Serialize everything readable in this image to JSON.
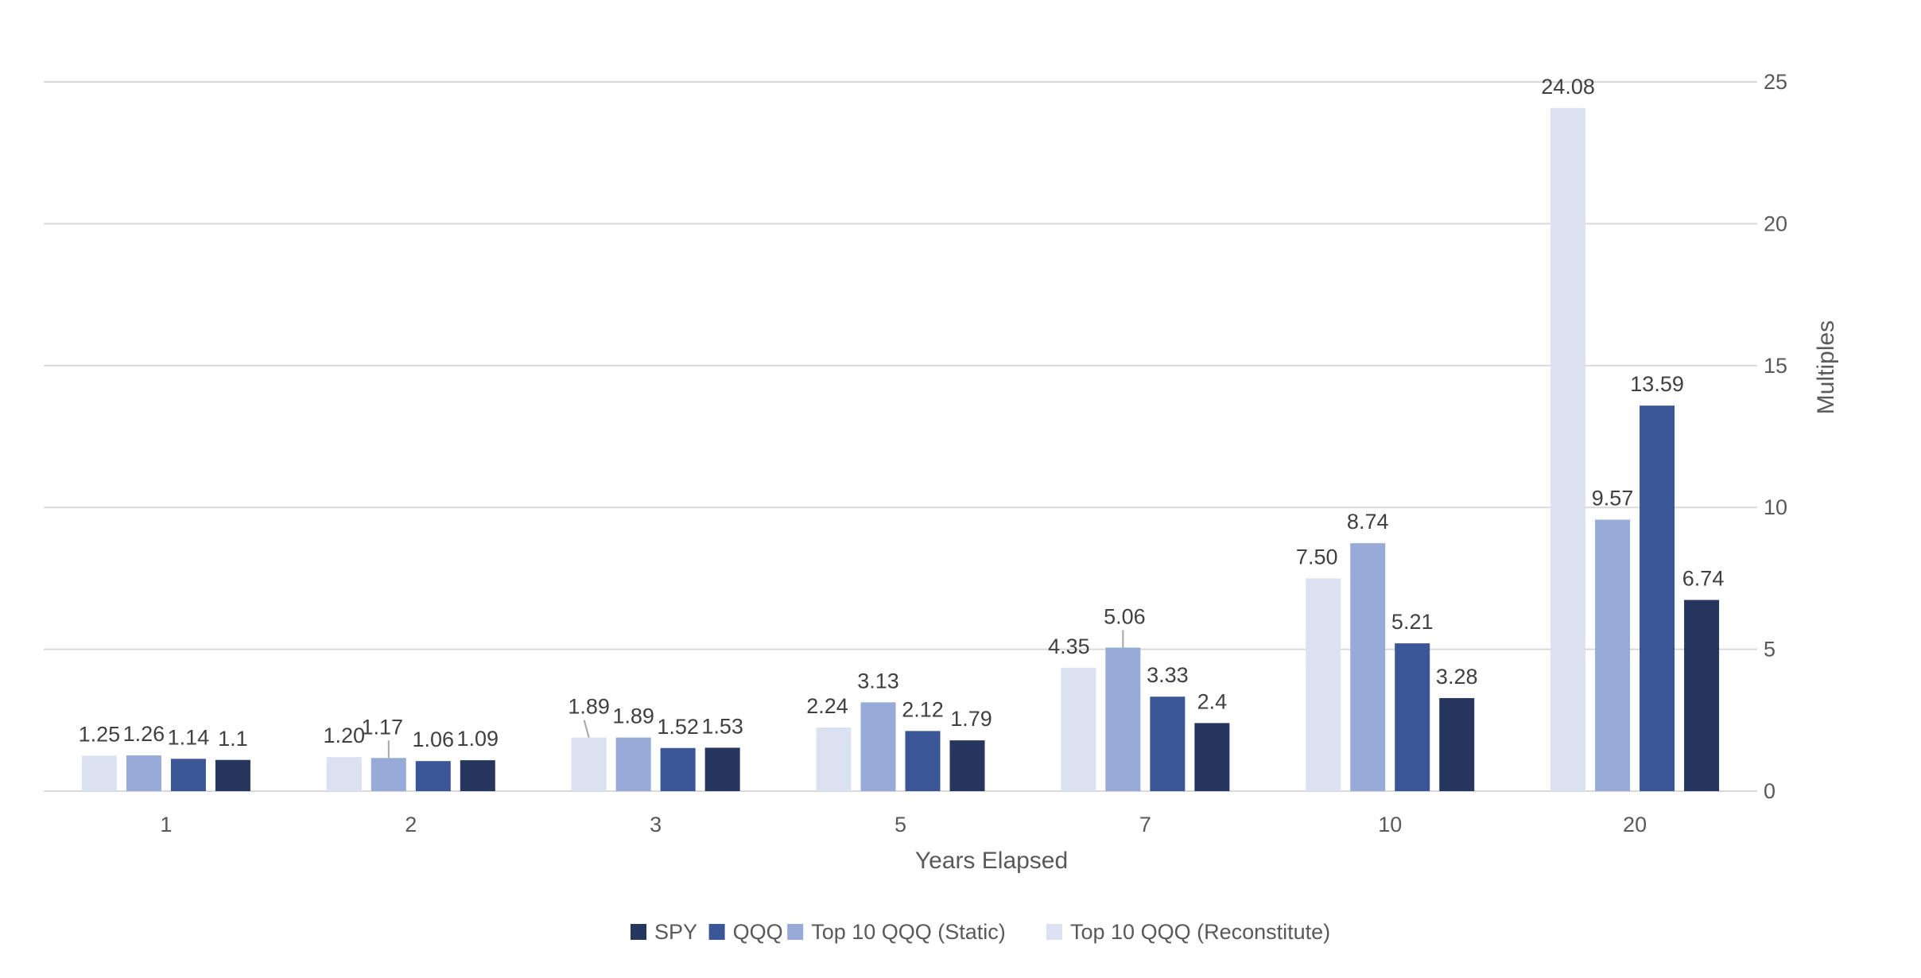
{
  "chart_data": {
    "type": "bar",
    "title": "",
    "xlabel": "Years Elapsed",
    "ylabel": "Multiples",
    "ylim": [
      0,
      25
    ],
    "yticks": [
      0,
      5,
      10,
      15,
      20,
      25
    ],
    "y_axis_side": "right",
    "grid": true,
    "legend_position": "bottom",
    "categories": [
      "1",
      "2",
      "3",
      "5",
      "7",
      "10",
      "20"
    ],
    "series": [
      {
        "name": "Top 10 QQQ (Reconstitute)",
        "color": "#dae1f0",
        "values": [
          1.25,
          1.2,
          1.89,
          2.24,
          4.35,
          7.5,
          24.08
        ],
        "labels": [
          "1.25",
          "1.20",
          "1.89",
          "2.24",
          "4.35",
          "7.50",
          "24.08"
        ]
      },
      {
        "name": "Top 10 QQQ (Static)",
        "color": "#98aad8",
        "values": [
          1.26,
          1.17,
          1.89,
          3.13,
          5.06,
          8.74,
          9.57
        ],
        "labels": [
          "1.26",
          "1.17",
          "1.89",
          "3.13",
          "5.06",
          "8.74",
          "9.57"
        ]
      },
      {
        "name": "QQQ",
        "color": "#3a5697",
        "values": [
          1.14,
          1.06,
          1.52,
          2.12,
          3.33,
          5.21,
          13.59
        ],
        "labels": [
          "1.14",
          "1.06",
          "1.52",
          "2.12",
          "3.33",
          "5.21",
          "13.59"
        ]
      },
      {
        "name": "SPY",
        "color": "#26365e",
        "values": [
          1.1,
          1.09,
          1.53,
          1.79,
          2.4,
          3.28,
          6.74
        ],
        "labels": [
          "1.1",
          "1.09",
          "1.53",
          "1.79",
          "2.4",
          "3.28",
          "6.74"
        ]
      }
    ],
    "legend_order": [
      "SPY",
      "QQQ",
      "Top 10 QQQ (Static)",
      "Top 10 QQQ (Reconstitute)"
    ],
    "colors": {
      "gridline": "#d9d9d9",
      "axis_text": "#595959",
      "data_label": "#404040"
    }
  }
}
